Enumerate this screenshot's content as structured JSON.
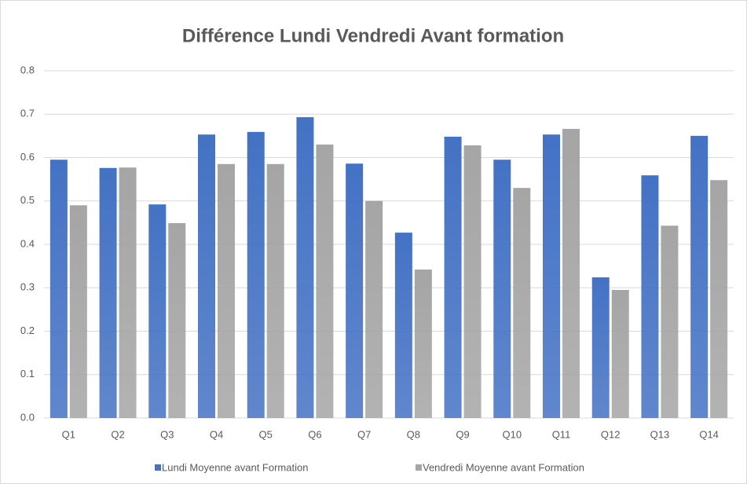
{
  "chart_data": {
    "type": "bar",
    "title": "Différence Lundi Vendredi Avant formation",
    "categories": [
      "Q1",
      "Q2",
      "Q3",
      "Q4",
      "Q5",
      "Q6",
      "Q7",
      "Q8",
      "Q9",
      "Q10",
      "Q11",
      "Q12",
      "Q13",
      "Q14"
    ],
    "series": [
      {
        "name": "Lundi Moyenne avant Formation",
        "color": "#4472c4",
        "values": [
          0.595,
          0.576,
          0.492,
          0.653,
          0.659,
          0.693,
          0.586,
          0.427,
          0.648,
          0.595,
          0.653,
          0.324,
          0.559,
          0.65
        ]
      },
      {
        "name": "Vendredi Moyenne avant Formation",
        "color": "#a5a5a5",
        "values": [
          0.49,
          0.577,
          0.449,
          0.585,
          0.585,
          0.63,
          0.5,
          0.342,
          0.628,
          0.53,
          0.666,
          0.295,
          0.443,
          0.548
        ]
      }
    ],
    "ylim": [
      0,
      0.8
    ],
    "yticks": [
      {
        "value": 0,
        "label": "0.0"
      },
      0.1,
      0.2,
      0.3,
      0.4,
      0.5,
      0.6,
      0.7,
      0.8
    ],
    "grid": true,
    "legend": "bottom"
  }
}
